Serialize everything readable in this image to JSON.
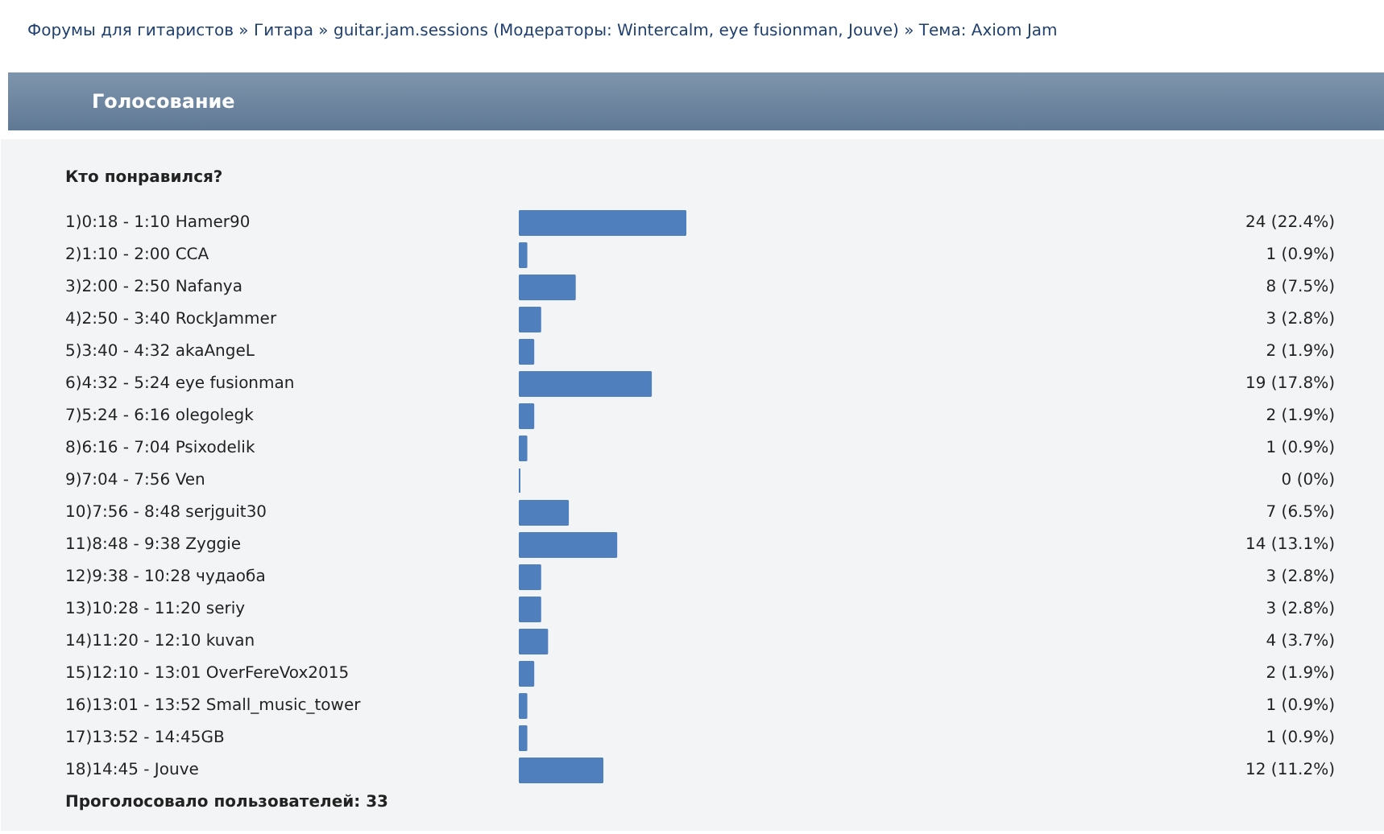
{
  "chart_data": {
    "type": "bar",
    "orientation": "horizontal",
    "title": "Голосование",
    "subtitle": "Кто понравился?",
    "annotations": [
      "Форумы для гитаристов » Гитара » guitar.jam.sessions (Модераторы: Wintercalm, eye fusionman, Jouve) » Тема: Axiom Jam",
      "Проголосовало пользователей: 33"
    ],
    "categories": [
      "1)0:18 - 1:10 Hamer90",
      "2)1:10 - 2:00 CCA",
      "3)2:00 - 2:50 Nafanya",
      "4)2:50 - 3:40 RockJammer",
      "5)3:40 - 4:32 akaAngeL",
      "6)4:32 - 5:24 eye fusionman",
      "7)5:24 - 6:16 olegolegk",
      "8)6:16 - 7:04 Psixodelik",
      "9)7:04 - 7:56 Ven",
      "10)7:56 - 8:48 serjguit30",
      "11)8:48 - 9:38 Zyggie",
      "12)9:38 - 10:28 чудаоба",
      "13)10:28 - 11:20 seriy",
      "14)11:20 - 12:10 kuvan",
      "15)12:10 - 13:01 OverFereVox2015",
      "16)13:01 - 13:52 Small_music_tower",
      "17)13:52 - 14:45GB",
      "18)14:45 - Jouve"
    ],
    "values": [
      24,
      1,
      8,
      3,
      2,
      19,
      2,
      1,
      0,
      7,
      14,
      3,
      3,
      4,
      2,
      1,
      1,
      12
    ],
    "value_labels": [
      "24 (22.4%)",
      "1 (0.9%)",
      "8 (7.5%)",
      "3 (2.8%)",
      "2 (1.9%)",
      "19 (17.8%)",
      "2 (1.9%)",
      "1 (0.9%)",
      "0 (0%)",
      "7 (6.5%)",
      "14 (13.1%)",
      "3 (2.8%)",
      "3 (2.8%)",
      "4 (3.7%)",
      "2 (1.9%)",
      "1 (0.9%)",
      "1 (0.9%)",
      "12 (11.2%)"
    ],
    "color": "#4f7fbd"
  }
}
